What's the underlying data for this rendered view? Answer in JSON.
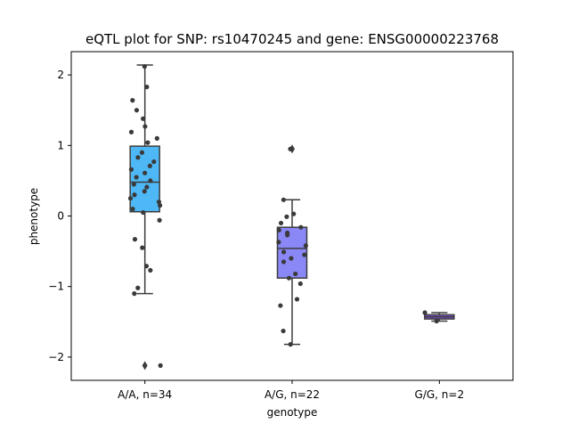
{
  "chart_data": {
    "type": "boxplot",
    "title": "eQTL plot for SNP: rs10470245 and gene: ENSG00000223768",
    "xlabel": "genotype",
    "ylabel": "phenotype",
    "ylim": [
      -2.33,
      2.33
    ],
    "yticks": [
      {
        "value": 2,
        "label": "2"
      },
      {
        "value": 1,
        "label": "1"
      },
      {
        "value": 0,
        "label": "0"
      },
      {
        "value": -1,
        "label": "−1"
      },
      {
        "value": -2,
        "label": "−2"
      }
    ],
    "grid": false,
    "categories": [
      "A/A, n=34",
      "A/G, n=22",
      "G/G, n=2"
    ],
    "colors": [
      "#4db8f5",
      "#8a87f7",
      "#7f4fd6"
    ],
    "boxes": [
      {
        "category": "A/A, n=34",
        "q1": 0.06,
        "median": 0.48,
        "q3": 0.99,
        "whisker_low": -1.1,
        "whisker_high": 2.14,
        "fliers": [
          -2.12
        ]
      },
      {
        "category": "A/G, n=22",
        "q1": -0.88,
        "median": -0.46,
        "q3": -0.16,
        "whisker_low": -1.82,
        "whisker_high": 0.23,
        "fliers": [
          0.95
        ]
      },
      {
        "category": "G/G, n=2",
        "q1": -1.46,
        "median": -1.43,
        "q3": -1.4,
        "whisker_low": -1.49,
        "whisker_high": -1.37,
        "fliers": []
      }
    ],
    "points": [
      [
        2.12,
        1.83,
        1.64,
        1.5,
        1.38,
        1.27,
        1.19,
        1.1,
        1.04,
        0.9,
        0.83,
        0.77,
        0.71,
        0.66,
        0.61,
        0.55,
        0.5,
        0.45,
        0.41,
        0.35,
        0.3,
        0.25,
        0.2,
        0.15,
        0.1,
        0.05,
        -0.06,
        -0.33,
        -0.45,
        -0.71,
        -0.77,
        -1.02,
        -1.1,
        -2.12
      ],
      [
        0.95,
        0.23,
        0.03,
        -0.01,
        -0.1,
        -0.16,
        -0.24,
        -0.27,
        -0.37,
        -0.42,
        -0.51,
        -0.55,
        -0.6,
        -0.65,
        -0.82,
        -0.88,
        -0.96,
        -1.18,
        -1.27,
        -1.63,
        -1.82,
        -0.2
      ],
      [
        -1.37,
        -1.49
      ]
    ]
  }
}
